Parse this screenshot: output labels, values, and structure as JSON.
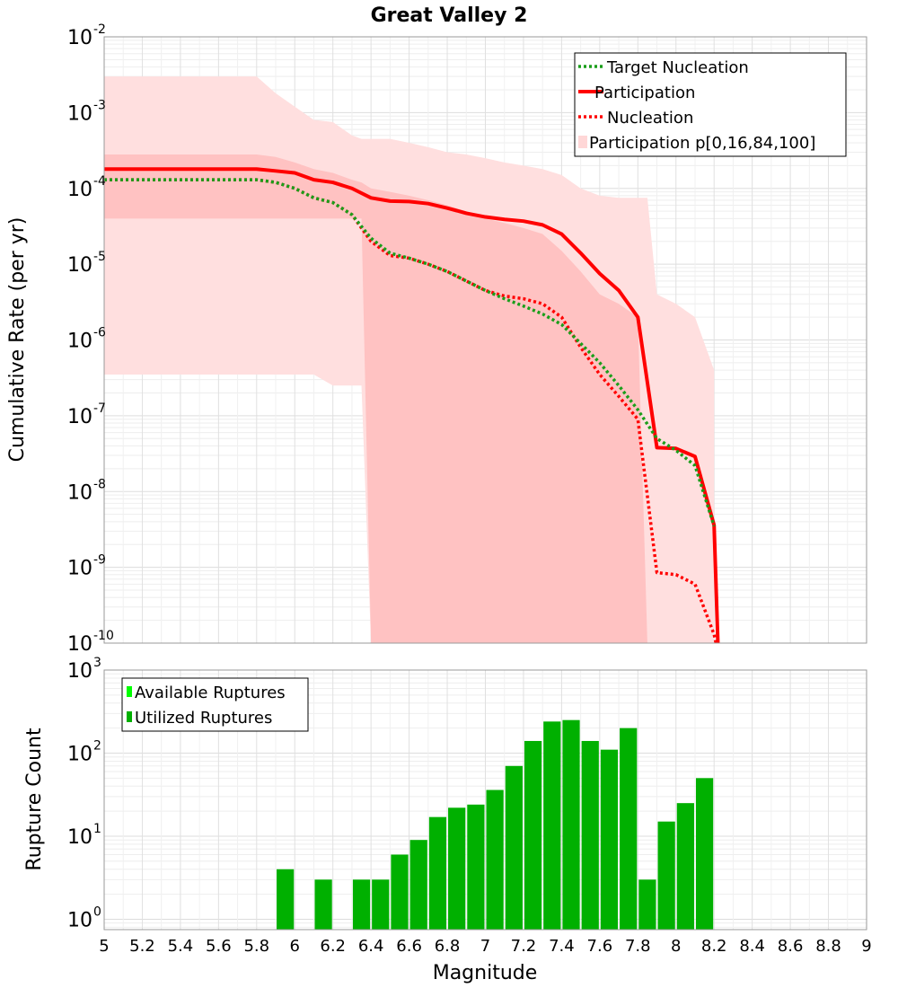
{
  "chart_data": [
    {
      "type": "line",
      "title": "Great Valley 2",
      "xlabel": "",
      "ylabel": "Cumulative Rate (per yr)",
      "xlim": [
        5,
        9
      ],
      "ylim": [
        1e-10,
        0.01
      ],
      "yscale": "log",
      "grid": true,
      "legend_placement": "top-right",
      "yticks": [
        {
          "base": "10",
          "exp": "-2"
        },
        {
          "base": "10",
          "exp": "-3"
        },
        {
          "base": "10",
          "exp": "-4"
        },
        {
          "base": "10",
          "exp": "-5"
        },
        {
          "base": "10",
          "exp": "-6"
        },
        {
          "base": "10",
          "exp": "-7"
        },
        {
          "base": "10",
          "exp": "-8"
        },
        {
          "base": "10",
          "exp": "-9"
        },
        {
          "base": "10",
          "exp": "-10"
        }
      ],
      "legend": [
        {
          "label": "Target Nucleation",
          "style": "dotted",
          "color": "#1a9e1a"
        },
        {
          "label": "Participation",
          "style": "solid",
          "color": "#ff0000"
        },
        {
          "label": "Nucleation",
          "style": "dotted",
          "color": "#ff0000"
        },
        {
          "label": "Participation p[0,16,84,100]",
          "style": "band",
          "color": "#ffd7d7"
        }
      ],
      "bands": [
        {
          "name": "Participation p[0,16,84,100]",
          "outer_color": "#ffdfdf",
          "inner_color": "#ffc2c2",
          "outer": {
            "x": [
              5.0,
              5.8,
              5.9,
              6.0,
              6.1,
              6.2,
              6.3,
              6.35,
              6.4,
              6.5,
              6.6,
              6.7,
              6.8,
              6.9,
              7.0,
              7.1,
              7.2,
              7.3,
              7.4,
              7.5,
              7.6,
              7.7,
              7.8,
              7.85,
              7.9,
              8.0,
              8.1,
              8.2
            ],
            "upper": [
              0.003,
              0.003,
              0.0018,
              0.0012,
              0.0008,
              0.00075,
              0.0005,
              0.00045,
              0.00045,
              0.00045,
              0.0004,
              0.00035,
              0.0003,
              0.00028,
              0.00025,
              0.00022,
              0.0002,
              0.00018,
              0.00015,
              0.0001,
              8e-05,
              7.5e-05,
              7.5e-05,
              7.5e-05,
              4e-06,
              3e-06,
              2e-06,
              4e-07
            ],
            "lower": [
              3.5e-07,
              3.5e-07,
              3.5e-07,
              3.5e-07,
              3.5e-07,
              2.5e-07,
              2.5e-07,
              2.5e-07,
              1e-10,
              1e-10,
              1e-10,
              1e-10,
              1e-10,
              1e-10,
              1e-10,
              1e-10,
              1e-10,
              1e-10,
              1e-10,
              1e-10,
              1e-10,
              1e-10,
              1e-10,
              1e-10,
              1e-10,
              1e-10,
              1e-10,
              1e-10
            ]
          },
          "inner": {
            "x": [
              5.0,
              5.8,
              5.9,
              6.0,
              6.1,
              6.2,
              6.3,
              6.35,
              6.4,
              6.5,
              6.6,
              6.7,
              6.8,
              6.9,
              7.0,
              7.1,
              7.2,
              7.3,
              7.4,
              7.5,
              7.6,
              7.7,
              7.8,
              7.85,
              7.9
            ],
            "upper": [
              0.00028,
              0.00028,
              0.00026,
              0.00022,
              0.00018,
              0.00016,
              0.00013,
              0.00012,
              0.0001,
              9e-05,
              8e-05,
              7e-05,
              6e-05,
              5e-05,
              4e-05,
              3.5e-05,
              3e-05,
              2.5e-05,
              1.5e-05,
              8e-06,
              4e-06,
              3e-06,
              2e-06,
              1e-10,
              1e-10
            ],
            "lower": [
              4e-05,
              4e-05,
              4e-05,
              4e-05,
              4e-05,
              4e-05,
              4e-05,
              4e-05,
              1e-10,
              1e-10,
              1e-10,
              1e-10,
              1e-10,
              1e-10,
              1e-10,
              1e-10,
              1e-10,
              1e-10,
              1e-10,
              1e-10,
              1e-10,
              1e-10,
              1e-10,
              1e-10,
              1e-10
            ]
          }
        }
      ],
      "series": [
        {
          "name": "Participation",
          "style": "solid",
          "color": "#ff0000",
          "x": [
            5.0,
            5.8,
            5.9,
            6.0,
            6.1,
            6.2,
            6.3,
            6.4,
            6.5,
            6.6,
            6.7,
            6.8,
            6.9,
            7.0,
            7.1,
            7.2,
            7.3,
            7.4,
            7.5,
            7.6,
            7.7,
            7.8,
            7.9,
            8.0,
            8.1,
            8.2,
            8.22
          ],
          "y": [
            0.00018,
            0.00018,
            0.00017,
            0.00016,
            0.00013,
            0.00012,
            0.0001,
            7.5e-05,
            6.8e-05,
            6.7e-05,
            6.3e-05,
            5.5e-05,
            4.7e-05,
            4.2e-05,
            3.9e-05,
            3.7e-05,
            3.3e-05,
            2.5e-05,
            1.4e-05,
            7.5e-06,
            4.5e-06,
            2e-06,
            3.8e-08,
            3.7e-08,
            2.9e-08,
            3.6e-09,
            1e-10
          ]
        },
        {
          "name": "Nucleation",
          "style": "dotted",
          "color": "#ff0000",
          "x": [
            5.0,
            5.8,
            5.9,
            6.0,
            6.1,
            6.2,
            6.3,
            6.4,
            6.5,
            6.6,
            6.7,
            6.8,
            6.9,
            7.0,
            7.1,
            7.2,
            7.3,
            7.4,
            7.5,
            7.6,
            7.7,
            7.8,
            7.9,
            8.0,
            8.1,
            8.2,
            8.21
          ],
          "y": [
            0.00013,
            0.00013,
            0.00012,
            0.0001,
            7.5e-05,
            6.5e-05,
            4.5e-05,
            2e-05,
            1.3e-05,
            1.2e-05,
            1e-05,
            8e-06,
            6e-06,
            4.5e-06,
            3.8e-06,
            3.5e-06,
            3e-06,
            2e-06,
            8e-07,
            3.5e-07,
            1.8e-07,
            9e-08,
            8.5e-10,
            8e-10,
            6e-10,
            1.3e-10,
            1e-10
          ]
        },
        {
          "name": "Target Nucleation",
          "style": "dotted",
          "color": "#1a9e1a",
          "x": [
            5.0,
            5.8,
            5.9,
            6.0,
            6.1,
            6.2,
            6.3,
            6.4,
            6.5,
            6.6,
            6.7,
            6.8,
            6.9,
            7.0,
            7.1,
            7.2,
            7.3,
            7.4,
            7.5,
            7.6,
            7.7,
            7.8,
            7.9,
            8.0,
            8.1,
            8.2
          ],
          "y": [
            0.00013,
            0.00013,
            0.00012,
            0.0001,
            7.5e-05,
            6.5e-05,
            4.5e-05,
            2.2e-05,
            1.4e-05,
            1.2e-05,
            1e-05,
            8e-06,
            6e-06,
            4.5e-06,
            3.5e-06,
            2.8e-06,
            2.2e-06,
            1.6e-06,
            9e-07,
            5e-07,
            2.5e-07,
            1.2e-07,
            5e-08,
            3.5e-08,
            2.2e-08,
            3.5e-09
          ]
        }
      ]
    },
    {
      "type": "bar",
      "title": "",
      "xlabel": "Magnitude",
      "ylabel": "Rupture Count",
      "xlim": [
        5,
        9
      ],
      "ylim": [
        0.75,
        1000
      ],
      "yscale": "log",
      "grid": true,
      "legend_placement": "top-left",
      "xticks": [
        "5",
        "5.2",
        "5.4",
        "5.6",
        "5.8",
        "6",
        "6.2",
        "6.4",
        "6.6",
        "6.8",
        "7",
        "7.2",
        "7.4",
        "7.6",
        "7.8",
        "8",
        "8.2",
        "8.4",
        "8.6",
        "8.8",
        "9"
      ],
      "yticks": [
        {
          "base": "10",
          "exp": "3"
        },
        {
          "base": "10",
          "exp": "2"
        },
        {
          "base": "10",
          "exp": "1"
        },
        {
          "base": "10",
          "exp": "0"
        }
      ],
      "legend": [
        {
          "label": "Available Ruptures",
          "color": "#00ff00"
        },
        {
          "label": "Utilized Ruptures",
          "color": "#00b000"
        }
      ],
      "bar_width": 0.1,
      "series": [
        {
          "name": "Utilized Ruptures",
          "color": "#00b000",
          "x": [
            5.95,
            6.15,
            6.35,
            6.45,
            6.55,
            6.65,
            6.75,
            6.85,
            6.95,
            7.05,
            7.15,
            7.25,
            7.35,
            7.45,
            7.55,
            7.65,
            7.75,
            7.85,
            7.95,
            8.05,
            8.15
          ],
          "values": [
            4,
            3,
            3,
            3,
            6,
            9,
            17,
            22,
            24,
            36,
            70,
            140,
            240,
            250,
            140,
            110,
            200,
            3,
            15,
            25,
            50
          ]
        }
      ]
    }
  ]
}
